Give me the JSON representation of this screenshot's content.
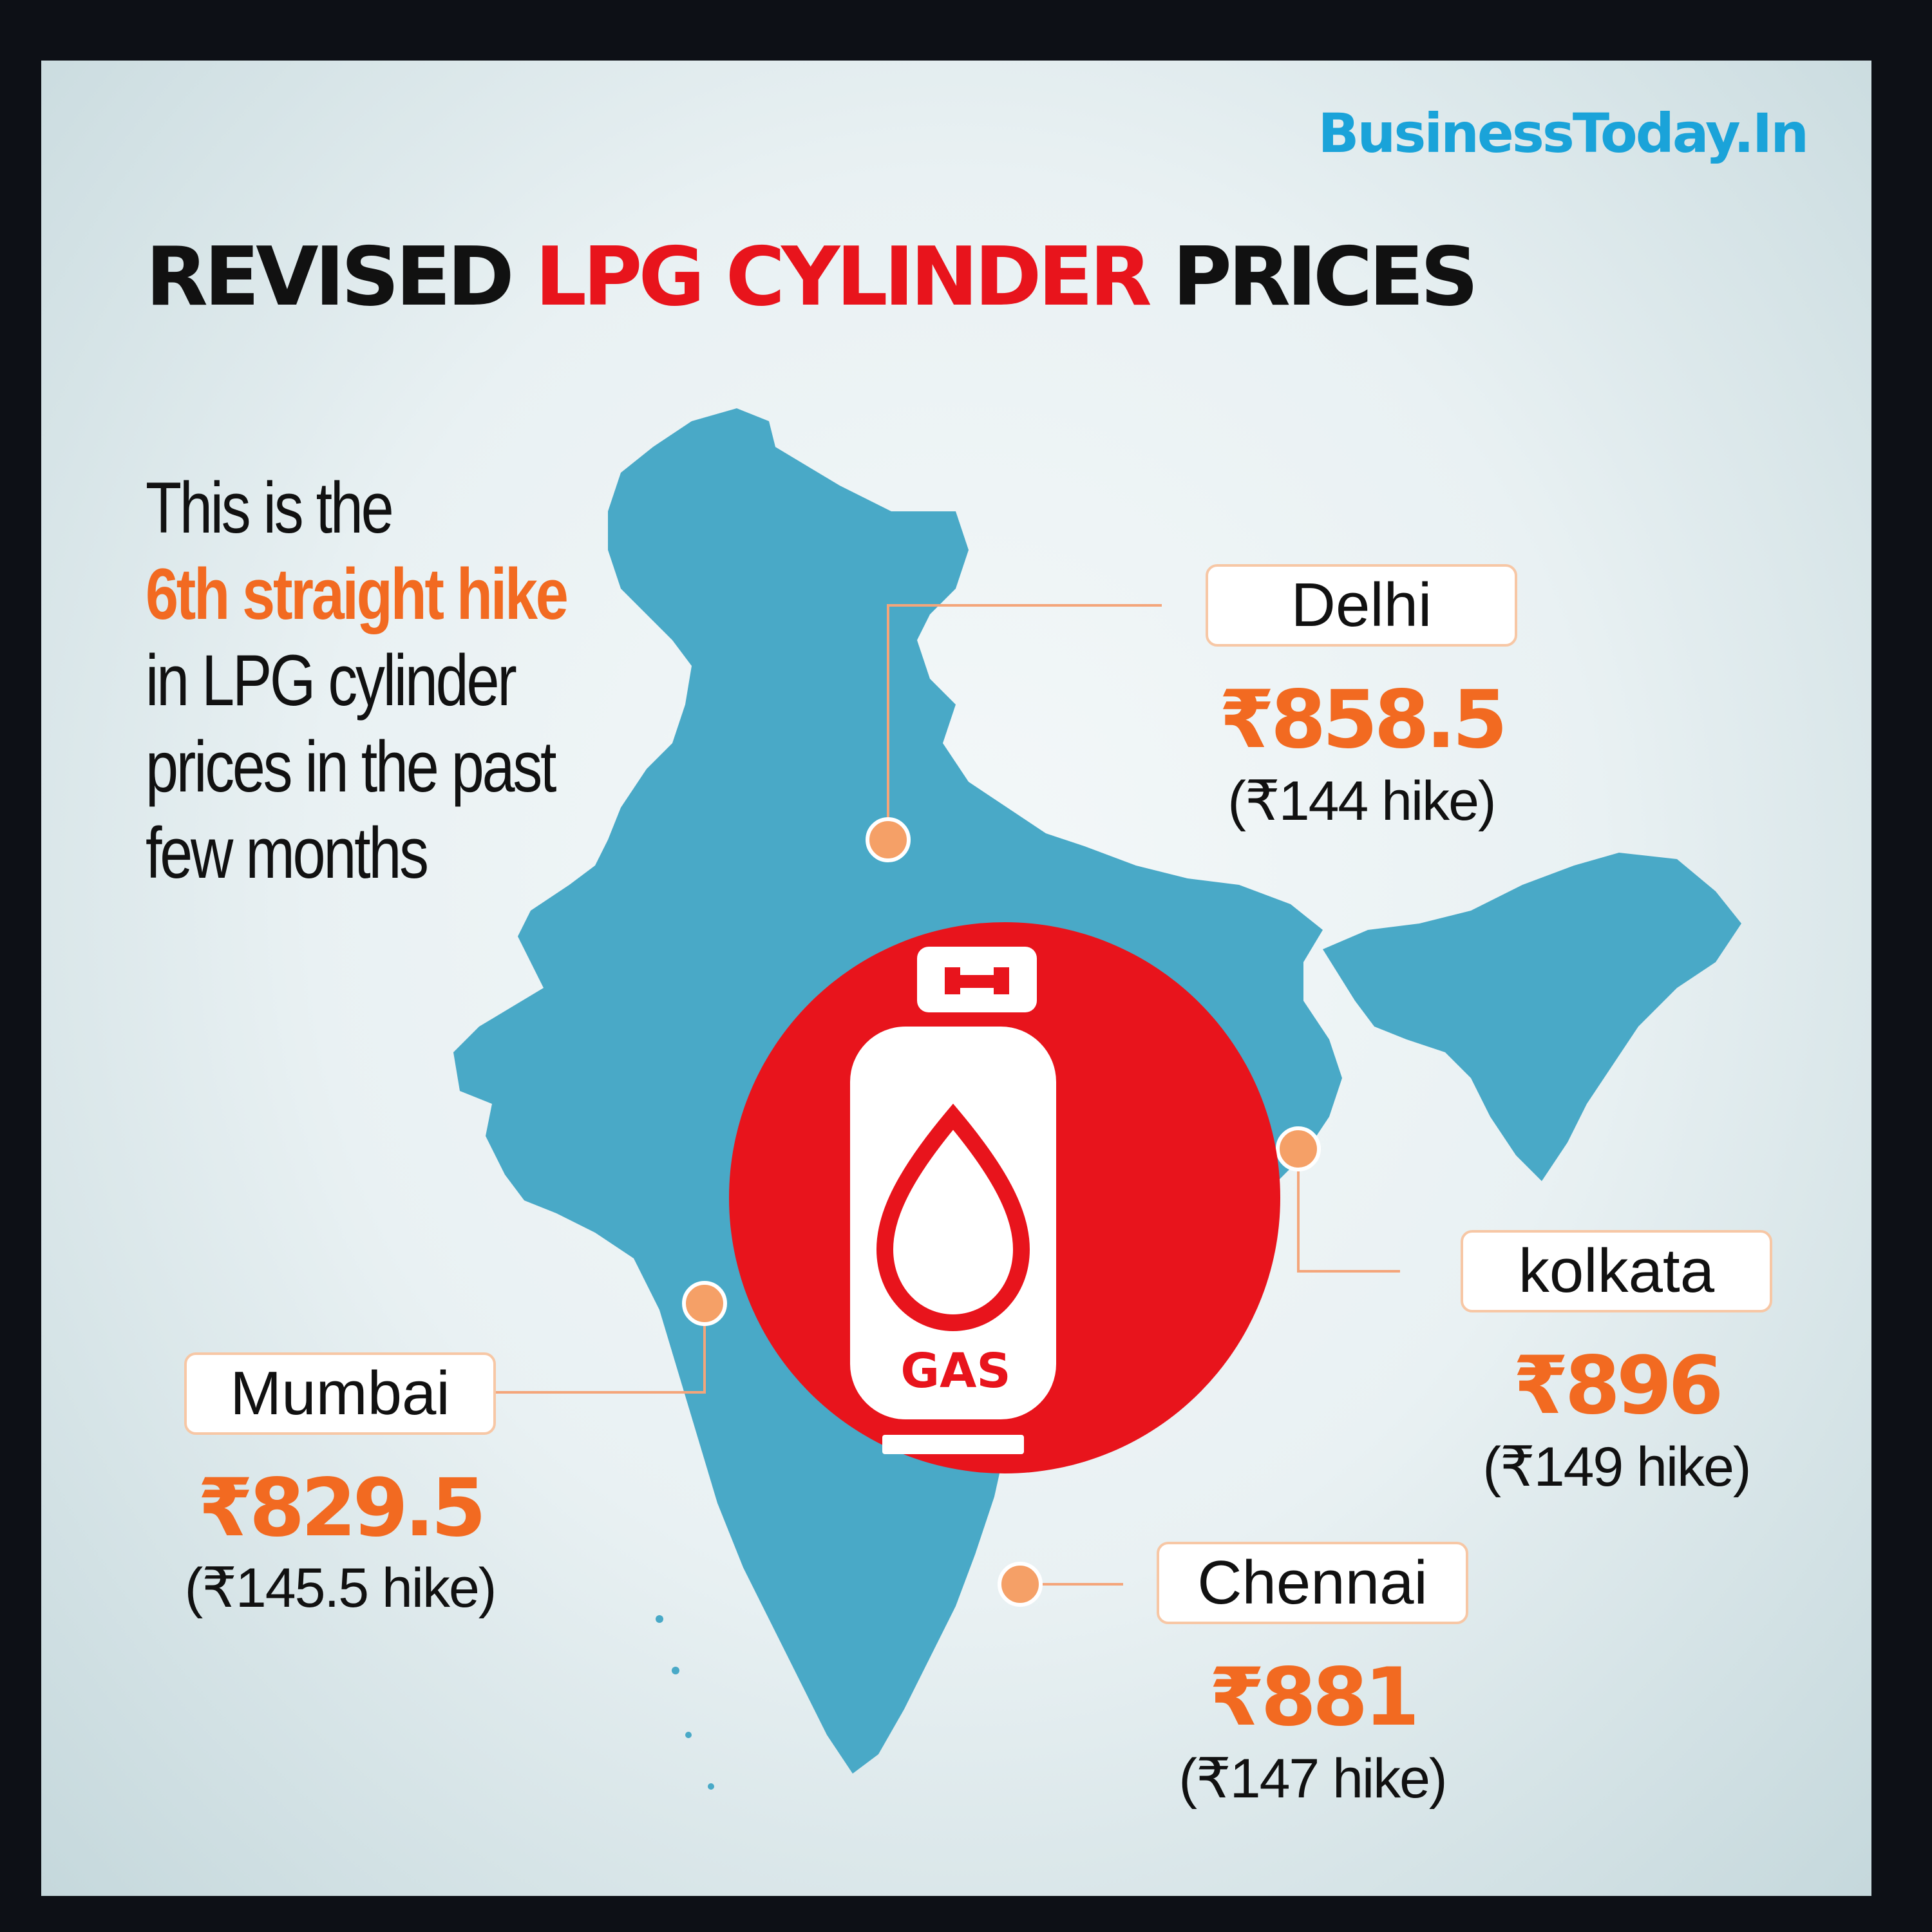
{
  "brand": "BusinessToday.In",
  "title": {
    "part1": "REVISED",
    "part2": "LPG CYLINDER",
    "part3": "PRICES"
  },
  "intro": {
    "line1": "This is the",
    "line2": "6th straight hike",
    "line3": "in LPG cylinder",
    "line4": "prices in the past",
    "line5": "few months"
  },
  "cylinder_label": "GAS",
  "cities": [
    {
      "name": "Delhi",
      "price": "₹858.5",
      "hike": "(₹144 hike)"
    },
    {
      "name": "kolkata",
      "price": "₹896",
      "hike": "(₹149 hike)"
    },
    {
      "name": "Mumbai",
      "price": "₹829.5",
      "hike": "(₹145.5 hike)"
    },
    {
      "name": "Chennai",
      "price": "₹881",
      "hike": "(₹147 hike)"
    }
  ],
  "colors": {
    "map": "#49a9c7",
    "accent_orange": "#f26a21",
    "accent_red": "#e8141c",
    "brand_blue": "#1aa3d9"
  }
}
